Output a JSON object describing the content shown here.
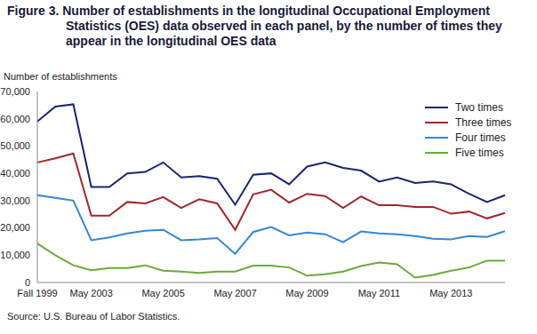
{
  "chart_data": {
    "type": "line",
    "title": "Figure 3. Number of establishments in the longitudinal Occupational Employment Statistics (OES) data observed in each panel, by the number of times they appear in the longitudinal OES data",
    "y_label": "Number of establishments",
    "source": "Source: U.S. Bureau of Labor Statistics.",
    "categories": [
      "Fall 1999",
      null,
      null,
      "May 2003",
      null,
      null,
      null,
      "May 2005",
      null,
      null,
      null,
      "May 2007",
      null,
      null,
      null,
      "May 2009",
      null,
      null,
      null,
      "May 2011",
      null,
      null,
      null,
      "May 2013",
      null,
      null,
      null
    ],
    "series": [
      {
        "name": "Two times",
        "color": "#1c2573",
        "values": [
          59000,
          64500,
          65300,
          35000,
          35000,
          40000,
          40500,
          44000,
          38500,
          39000,
          38000,
          28500,
          39500,
          40000,
          36000,
          42500,
          44000,
          42000,
          41000,
          37000,
          38500,
          36500,
          37000,
          36000,
          32500,
          29500,
          32000
        ]
      },
      {
        "name": "Three times",
        "color": "#a3262a",
        "values": [
          44000,
          45500,
          47300,
          24500,
          24500,
          29500,
          29000,
          31300,
          27300,
          30500,
          29000,
          19300,
          32300,
          34000,
          29300,
          32500,
          31700,
          27300,
          31500,
          28300,
          28300,
          27700,
          27700,
          25200,
          26000,
          23500,
          25500
        ]
      },
      {
        "name": "Four times",
        "color": "#3288d4",
        "values": [
          32000,
          31000,
          30000,
          15500,
          16500,
          18000,
          19000,
          19300,
          15500,
          15800,
          16300,
          10500,
          18500,
          20300,
          17300,
          18300,
          17700,
          14800,
          18700,
          18000,
          17700,
          17000,
          16000,
          15800,
          17000,
          16700,
          18800
        ]
      },
      {
        "name": "Five times",
        "color": "#6aab35",
        "values": [
          14300,
          10000,
          6300,
          4500,
          5300,
          5300,
          6300,
          4300,
          4000,
          3500,
          4000,
          4000,
          6200,
          6200,
          5500,
          2500,
          3000,
          4000,
          6000,
          7300,
          6700,
          1800,
          2800,
          4300,
          5500,
          8000,
          8000
        ]
      }
    ],
    "ylim": [
      0,
      70000
    ],
    "yticks": [
      0,
      {
        "value": 10000,
        "label": "10,000"
      },
      {
        "value": 20000,
        "label": "20,000"
      },
      {
        "value": 30000,
        "label": "30,000"
      },
      {
        "value": 40000,
        "label": "40,000"
      },
      {
        "value": 50000,
        "label": "50,000"
      },
      {
        "value": 60000,
        "label": "60,000"
      },
      {
        "value": 70000,
        "label": "70,000"
      }
    ],
    "grid": false,
    "legend": "top right"
  }
}
